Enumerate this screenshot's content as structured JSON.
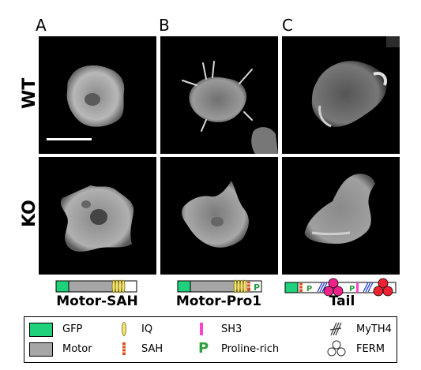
{
  "panels": {
    "a_letter": "A",
    "b_letter": "B",
    "c_letter": "C"
  },
  "rows": {
    "wt": "WT",
    "ko": "KO"
  },
  "constructs": {
    "a": "Motor-SAH",
    "b": "Motor-Pro1",
    "c": "Tail"
  },
  "schematic_glyphs": {
    "proline": "P"
  },
  "legend": {
    "gfp": "GFP",
    "motor": "Motor",
    "iq": "IQ",
    "sah": "SAH",
    "sh3": "SH3",
    "proline_symbol": "P",
    "proline_rich": "Proline-rich",
    "myth4": "MyTH4",
    "ferm": "FERM"
  },
  "colors": {
    "gfp": "#1fd17a",
    "motor": "#a6a6a6",
    "iq": "#f2e27a",
    "sah": "#d9531e",
    "sh3": "#ff44cc",
    "proline": "#2e9e3e",
    "myth4": "#2a3fd6",
    "ferm": "#ee2233",
    "sh3_ball": "#ee2288"
  }
}
